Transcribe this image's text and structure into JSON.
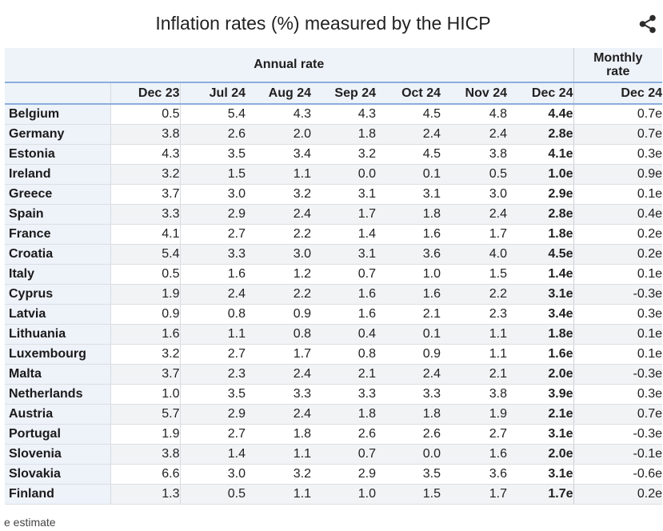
{
  "title": "Inflation rates (%) measured by the HICP",
  "share_icon": "share-icon",
  "header": {
    "annual_label": "Annual rate",
    "monthly_label_line1": "Monthly",
    "monthly_label_line2": "rate",
    "columns": [
      "Dec 23",
      "Jul 24",
      "Aug 24",
      "Sep 24",
      "Oct 24",
      "Nov 24",
      "Dec 24",
      "Dec 24"
    ]
  },
  "rows": [
    {
      "country": "Belgium",
      "values": [
        "0.5",
        "5.4",
        "4.3",
        "4.3",
        "4.5",
        "4.8",
        "4.4e",
        "0.7e"
      ]
    },
    {
      "country": "Germany",
      "values": [
        "3.8",
        "2.6",
        "2.0",
        "1.8",
        "2.4",
        "2.4",
        "2.8e",
        "0.7e"
      ]
    },
    {
      "country": "Estonia",
      "values": [
        "4.3",
        "3.5",
        "3.4",
        "3.2",
        "4.5",
        "3.8",
        "4.1e",
        "0.3e"
      ]
    },
    {
      "country": "Ireland",
      "values": [
        "3.2",
        "1.5",
        "1.1",
        "0.0",
        "0.1",
        "0.5",
        "1.0e",
        "0.9e"
      ]
    },
    {
      "country": "Greece",
      "values": [
        "3.7",
        "3.0",
        "3.2",
        "3.1",
        "3.1",
        "3.0",
        "2.9e",
        "0.1e"
      ]
    },
    {
      "country": "Spain",
      "values": [
        "3.3",
        "2.9",
        "2.4",
        "1.7",
        "1.8",
        "2.4",
        "2.8e",
        "0.4e"
      ]
    },
    {
      "country": "France",
      "values": [
        "4.1",
        "2.7",
        "2.2",
        "1.4",
        "1.6",
        "1.7",
        "1.8e",
        "0.2e"
      ]
    },
    {
      "country": "Croatia",
      "values": [
        "5.4",
        "3.3",
        "3.0",
        "3.1",
        "3.6",
        "4.0",
        "4.5e",
        "0.2e"
      ]
    },
    {
      "country": "Italy",
      "values": [
        "0.5",
        "1.6",
        "1.2",
        "0.7",
        "1.0",
        "1.5",
        "1.4e",
        "0.1e"
      ]
    },
    {
      "country": "Cyprus",
      "values": [
        "1.9",
        "2.4",
        "2.2",
        "1.6",
        "1.6",
        "2.2",
        "3.1e",
        "-0.3e"
      ]
    },
    {
      "country": "Latvia",
      "values": [
        "0.9",
        "0.8",
        "0.9",
        "1.6",
        "2.1",
        "2.3",
        "3.4e",
        "0.3e"
      ]
    },
    {
      "country": "Lithuania",
      "values": [
        "1.6",
        "1.1",
        "0.8",
        "0.4",
        "0.1",
        "1.1",
        "1.8e",
        "0.1e"
      ]
    },
    {
      "country": "Luxembourg",
      "values": [
        "3.2",
        "2.7",
        "1.7",
        "0.8",
        "0.9",
        "1.1",
        "1.6e",
        "0.1e"
      ]
    },
    {
      "country": "Malta",
      "values": [
        "3.7",
        "2.3",
        "2.4",
        "2.1",
        "2.4",
        "2.1",
        "2.0e",
        "-0.3e"
      ]
    },
    {
      "country": "Netherlands",
      "values": [
        "1.0",
        "3.5",
        "3.3",
        "3.3",
        "3.3",
        "3.8",
        "3.9e",
        "0.3e"
      ]
    },
    {
      "country": "Austria",
      "values": [
        "5.7",
        "2.9",
        "2.4",
        "1.8",
        "1.8",
        "1.9",
        "2.1e",
        "0.7e"
      ]
    },
    {
      "country": "Portugal",
      "values": [
        "1.9",
        "2.7",
        "1.8",
        "2.6",
        "2.6",
        "2.7",
        "3.1e",
        "-0.3e"
      ]
    },
    {
      "country": "Slovenia",
      "values": [
        "3.8",
        "1.4",
        "1.1",
        "0.7",
        "0.0",
        "1.6",
        "2.0e",
        "-0.1e"
      ]
    },
    {
      "country": "Slovakia",
      "values": [
        "6.6",
        "3.0",
        "3.2",
        "2.9",
        "3.5",
        "3.6",
        "3.1e",
        "-0.6e"
      ]
    },
    {
      "country": "Finland",
      "values": [
        "1.3",
        "0.5",
        "1.1",
        "1.0",
        "1.5",
        "1.7",
        "1.7e",
        "0.2e"
      ]
    }
  ],
  "footnote": "e estimate"
}
